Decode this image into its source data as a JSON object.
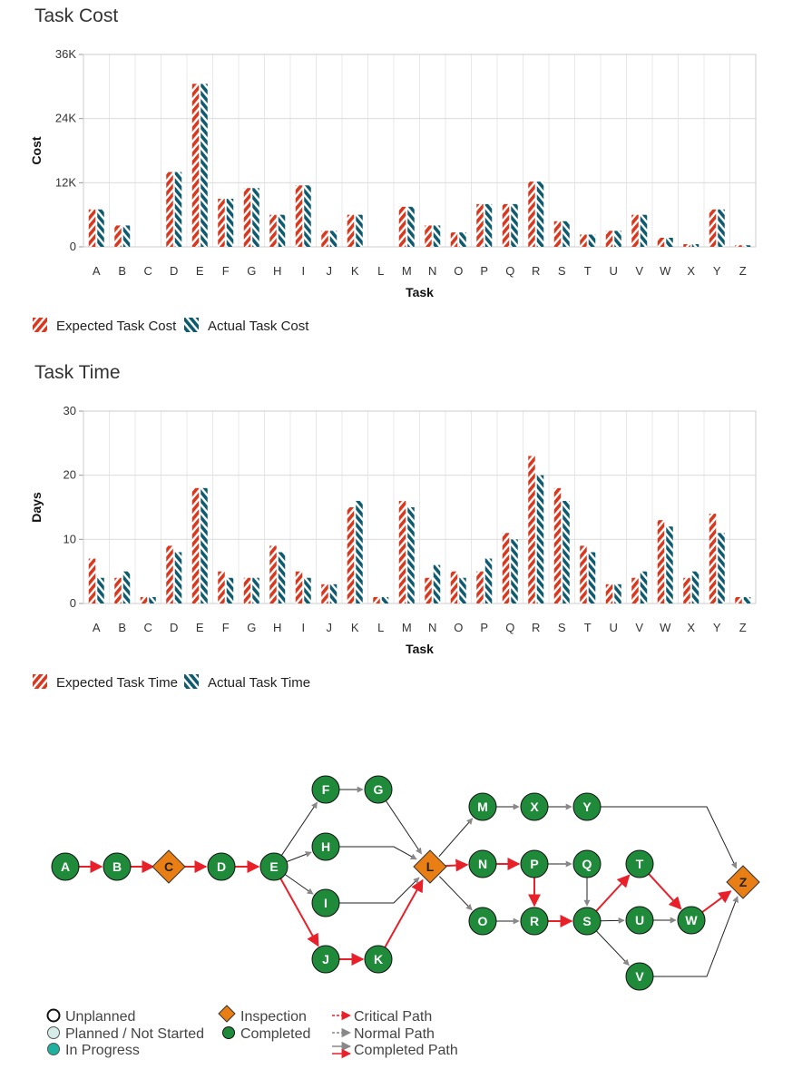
{
  "colors": {
    "expected": "#d9381e",
    "actual": "#0e5a6e",
    "completed": "#1f8b3a",
    "inspection": "#e87e14",
    "critical": "#e8202a",
    "normal": "#888888",
    "completed_path": "#222222"
  },
  "chart_data": [
    {
      "type": "bar",
      "title": "Task Cost",
      "xlabel": "Task",
      "ylabel": "Cost",
      "ylim": [
        0,
        36000
      ],
      "yticks": [
        0,
        12000,
        24000,
        36000
      ],
      "ytick_labels": [
        "0",
        "12K",
        "24K",
        "36K"
      ],
      "categories": [
        "A",
        "B",
        "C",
        "D",
        "E",
        "F",
        "G",
        "H",
        "I",
        "J",
        "K",
        "L",
        "M",
        "N",
        "O",
        "P",
        "Q",
        "R",
        "S",
        "T",
        "U",
        "V",
        "W",
        "X",
        "Y",
        "Z"
      ],
      "series": [
        {
          "name": "Expected Task Cost",
          "values": [
            7000,
            4000,
            0,
            14000,
            30500,
            9000,
            11000,
            6000,
            11500,
            3000,
            6000,
            0,
            7500,
            4000,
            2700,
            8000,
            8000,
            12200,
            4800,
            2300,
            3000,
            6000,
            1700,
            500,
            7000,
            300
          ]
        },
        {
          "name": "Actual Task Cost",
          "values": [
            7000,
            4000,
            0,
            14000,
            30500,
            9000,
            11000,
            6000,
            11500,
            3000,
            6000,
            0,
            7500,
            4000,
            2700,
            8000,
            8000,
            12200,
            4800,
            2300,
            3000,
            6000,
            1700,
            500,
            7000,
            300
          ]
        }
      ],
      "legend": "bottom-left",
      "grid": true
    },
    {
      "type": "bar",
      "title": "Task Time",
      "xlabel": "Task",
      "ylabel": "Days",
      "ylim": [
        0,
        30
      ],
      "yticks": [
        0,
        10,
        20,
        30
      ],
      "ytick_labels": [
        "0",
        "10",
        "20",
        "30"
      ],
      "categories": [
        "A",
        "B",
        "C",
        "D",
        "E",
        "F",
        "G",
        "H",
        "I",
        "J",
        "K",
        "L",
        "M",
        "N",
        "O",
        "P",
        "Q",
        "R",
        "S",
        "T",
        "U",
        "V",
        "W",
        "X",
        "Y",
        "Z"
      ],
      "series": [
        {
          "name": "Expected Task Time",
          "values": [
            7,
            4,
            1,
            9,
            18,
            5,
            4,
            9,
            5,
            3,
            15,
            1,
            16,
            4,
            5,
            5,
            11,
            23,
            18,
            9,
            3,
            4,
            13,
            4,
            14,
            1
          ]
        },
        {
          "name": "Actual Task Time",
          "values": [
            4,
            5,
            1,
            8,
            18,
            4,
            4,
            8,
            4,
            3,
            16,
            1,
            15,
            6,
            4,
            7,
            10,
            20,
            16,
            8,
            3,
            5,
            12,
            5,
            11,
            1
          ]
        }
      ],
      "legend": "bottom-left",
      "grid": true
    }
  ],
  "network": {
    "nodes": [
      {
        "id": "A",
        "shape": "circle"
      },
      {
        "id": "B",
        "shape": "circle"
      },
      {
        "id": "C",
        "shape": "diamond"
      },
      {
        "id": "D",
        "shape": "circle"
      },
      {
        "id": "E",
        "shape": "circle"
      },
      {
        "id": "F",
        "shape": "circle"
      },
      {
        "id": "G",
        "shape": "circle"
      },
      {
        "id": "H",
        "shape": "circle"
      },
      {
        "id": "I",
        "shape": "circle"
      },
      {
        "id": "J",
        "shape": "circle"
      },
      {
        "id": "K",
        "shape": "circle"
      },
      {
        "id": "L",
        "shape": "diamond"
      },
      {
        "id": "M",
        "shape": "circle"
      },
      {
        "id": "X",
        "shape": "circle"
      },
      {
        "id": "Y",
        "shape": "circle"
      },
      {
        "id": "N",
        "shape": "circle"
      },
      {
        "id": "P",
        "shape": "circle"
      },
      {
        "id": "Q",
        "shape": "circle"
      },
      {
        "id": "O",
        "shape": "circle"
      },
      {
        "id": "R",
        "shape": "circle"
      },
      {
        "id": "S",
        "shape": "circle"
      },
      {
        "id": "T",
        "shape": "circle"
      },
      {
        "id": "U",
        "shape": "circle"
      },
      {
        "id": "W",
        "shape": "circle"
      },
      {
        "id": "V",
        "shape": "circle"
      },
      {
        "id": "Z",
        "shape": "diamond"
      }
    ],
    "edges": [
      {
        "from": "A",
        "to": "B",
        "type": "critical"
      },
      {
        "from": "B",
        "to": "C",
        "type": "critical"
      },
      {
        "from": "C",
        "to": "D",
        "type": "critical"
      },
      {
        "from": "D",
        "to": "E",
        "type": "critical"
      },
      {
        "from": "E",
        "to": "F",
        "type": "normal"
      },
      {
        "from": "E",
        "to": "H",
        "type": "normal"
      },
      {
        "from": "E",
        "to": "I",
        "type": "normal"
      },
      {
        "from": "E",
        "to": "J",
        "type": "critical"
      },
      {
        "from": "F",
        "to": "G",
        "type": "normal"
      },
      {
        "from": "G",
        "to": "L",
        "type": "normal"
      },
      {
        "from": "H",
        "to": "L",
        "type": "normal"
      },
      {
        "from": "I",
        "to": "L",
        "type": "normal"
      },
      {
        "from": "J",
        "to": "K",
        "type": "critical"
      },
      {
        "from": "K",
        "to": "L",
        "type": "critical"
      },
      {
        "from": "L",
        "to": "M",
        "type": "normal"
      },
      {
        "from": "L",
        "to": "N",
        "type": "critical"
      },
      {
        "from": "L",
        "to": "O",
        "type": "normal"
      },
      {
        "from": "M",
        "to": "X",
        "type": "normal"
      },
      {
        "from": "X",
        "to": "Y",
        "type": "normal"
      },
      {
        "from": "Y",
        "to": "Z",
        "type": "normal"
      },
      {
        "from": "N",
        "to": "P",
        "type": "critical"
      },
      {
        "from": "P",
        "to": "Q",
        "type": "normal"
      },
      {
        "from": "P",
        "to": "R",
        "type": "critical"
      },
      {
        "from": "Q",
        "to": "S",
        "type": "normal"
      },
      {
        "from": "O",
        "to": "R",
        "type": "normal"
      },
      {
        "from": "R",
        "to": "S",
        "type": "critical"
      },
      {
        "from": "S",
        "to": "T",
        "type": "critical"
      },
      {
        "from": "S",
        "to": "U",
        "type": "normal"
      },
      {
        "from": "S",
        "to": "V",
        "type": "normal"
      },
      {
        "from": "T",
        "to": "W",
        "type": "critical"
      },
      {
        "from": "U",
        "to": "W",
        "type": "normal"
      },
      {
        "from": "W",
        "to": "Z",
        "type": "critical"
      },
      {
        "from": "V",
        "to": "Z",
        "type": "normal"
      }
    ],
    "legend": {
      "unplanned": "Unplanned",
      "planned": "Planned / Not Started",
      "in_progress": "In Progress",
      "inspection": "Inspection",
      "completed": "Completed",
      "critical_path": "Critical Path",
      "normal_path": "Normal Path",
      "completed_path": "Completed Path"
    }
  }
}
